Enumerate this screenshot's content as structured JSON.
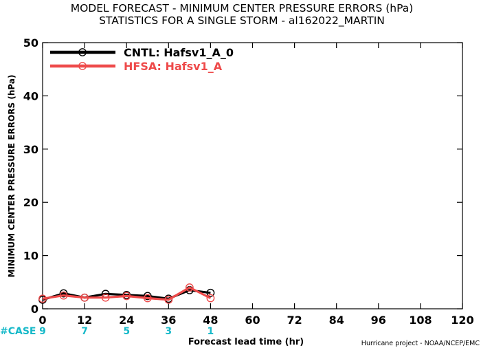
{
  "chart_data": {
    "type": "line",
    "title_lines": [
      "MODEL FORECAST - MINIMUM CENTER PRESSURE ERRORS (hPa)",
      "STATISTICS FOR A SINGLE STORM - al162022_MARTIN"
    ],
    "xlabel": "Forecast lead time (hr)",
    "ylabel": "MINIMUM CENTER PRESSURE ERRORS (hPa)",
    "xlim": [
      0,
      120
    ],
    "ylim": [
      0,
      50
    ],
    "xticks": [
      0,
      12,
      24,
      36,
      48,
      60,
      72,
      84,
      96,
      108,
      120
    ],
    "yticks": [
      0,
      10,
      20,
      30,
      40,
      50
    ],
    "grid": false,
    "legend_position": "top-left",
    "case_label": "#CASE",
    "case_counts": [
      {
        "x": 0,
        "count": "9"
      },
      {
        "x": 12,
        "count": "7"
      },
      {
        "x": 24,
        "count": "5"
      },
      {
        "x": 36,
        "count": "3"
      },
      {
        "x": 48,
        "count": "1"
      }
    ],
    "credit": "Hurricane project - NOAA/NCEP/EMC",
    "series": [
      {
        "name": "CNTL: Hafsv1_A_0",
        "color": "#000000",
        "x": [
          0,
          6,
          12,
          18,
          24,
          30,
          36,
          42,
          48
        ],
        "y": [
          1.7,
          2.9,
          2.1,
          2.8,
          2.6,
          2.4,
          1.9,
          3.5,
          3.0
        ]
      },
      {
        "name": "HFSA: Hafsv1_A",
        "color": "#ee4a4a",
        "x": [
          0,
          6,
          12,
          18,
          24,
          30,
          36,
          42,
          48
        ],
        "y": [
          1.9,
          2.5,
          2.1,
          2.1,
          2.4,
          2.0,
          1.7,
          4.0,
          2.0
        ]
      }
    ]
  }
}
